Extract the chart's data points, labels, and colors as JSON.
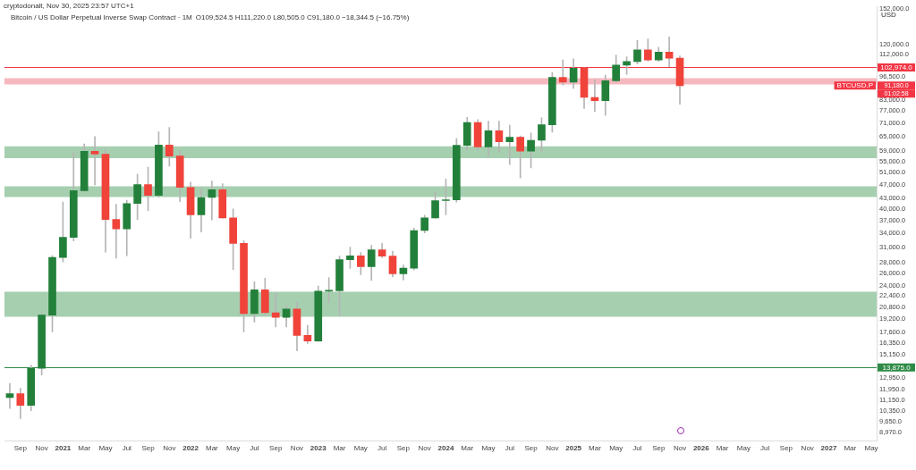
{
  "chart_data": {
    "type": "candlestick",
    "title": "Bitcoin / US Dollar Perpetual Inverse Swap Contract · 1M",
    "subtitle": "O109,524.5 H111,220.0 L80,505.0 C91,180.0 −18,344.5 (−16.75%)",
    "ylabel": "USD",
    "annotations": [
      "cryptodonalt, Nov 30, 2025 23:57 UTC+1",
      {
        "text": "BTCUSD.P",
        "y": 91180
      },
      "91,180.0",
      "01:02:58"
    ],
    "categories": [
      null,
      "Sep",
      null,
      "Nov",
      null,
      "2021",
      null,
      "Mar",
      null,
      "May",
      null,
      "Jul",
      null,
      "Sep",
      null,
      "Nov",
      null,
      "2022",
      null,
      "Mar",
      null,
      "May",
      null,
      "Jul",
      null,
      "Sep",
      null,
      "Nov",
      null,
      "2023",
      null,
      "Mar",
      null,
      "May",
      null,
      "Jul",
      null,
      "Sep",
      null,
      "Nov",
      null,
      "2024",
      null,
      "Mar",
      null,
      "May",
      null,
      "Jul",
      null,
      "Sep",
      null,
      "Nov",
      null,
      "2025",
      null,
      "Mar",
      null,
      "May",
      null,
      "Jul",
      null,
      "Sep",
      null,
      "Nov",
      null,
      "2026",
      null,
      "Mar",
      null,
      "May",
      null,
      "Jul",
      null,
      "Sep",
      null,
      "Nov",
      null,
      "2027",
      null,
      "Mar",
      null,
      "May"
    ],
    "ohlc": [
      [
        11350,
        12470,
        10550,
        11650
      ],
      [
        11650,
        12080,
        9870,
        10780
      ],
      [
        10780,
        14100,
        10400,
        13800
      ],
      [
        13800,
        19900,
        13200,
        19700
      ],
      [
        19700,
        29300,
        17600,
        28950
      ],
      [
        28950,
        41900,
        28100,
        33100
      ],
      [
        33100,
        58400,
        32300,
        45200
      ],
      [
        45200,
        61800,
        45000,
        58800
      ],
      [
        58800,
        64900,
        47000,
        57700
      ],
      [
        57700,
        59600,
        30000,
        37300
      ],
      [
        37300,
        41300,
        28800,
        35000
      ],
      [
        35000,
        42400,
        29300,
        41500
      ],
      [
        41500,
        50500,
        37300,
        47100
      ],
      [
        47100,
        52900,
        39600,
        43800
      ],
      [
        43800,
        67000,
        43300,
        61300
      ],
      [
        61300,
        69000,
        53300,
        57000
      ],
      [
        57000,
        59100,
        42000,
        46200
      ],
      [
        46200,
        47900,
        32900,
        38500
      ],
      [
        38500,
        45800,
        34300,
        43200
      ],
      [
        43200,
        48200,
        37200,
        45500
      ],
      [
        45500,
        47400,
        37600,
        37700
      ],
      [
        37700,
        40000,
        26700,
        31800
      ],
      [
        31800,
        32400,
        17600,
        19900
      ],
      [
        19900,
        24600,
        18800,
        23300
      ],
      [
        23300,
        25200,
        19600,
        20000
      ],
      [
        20000,
        22800,
        18200,
        19400
      ],
      [
        19400,
        21000,
        18200,
        20500
      ],
      [
        20500,
        21500,
        15500,
        17200
      ],
      [
        17200,
        18400,
        16300,
        16550
      ],
      [
        16550,
        23900,
        16500,
        23100
      ],
      [
        23100,
        25300,
        21400,
        23150
      ],
      [
        23150,
        29200,
        19600,
        28500
      ],
      [
        28500,
        31000,
        26900,
        29250
      ],
      [
        29250,
        29900,
        25800,
        27200
      ],
      [
        27200,
        31400,
        24800,
        30450
      ],
      [
        30450,
        31800,
        28900,
        29200
      ],
      [
        29200,
        30200,
        25400,
        25950
      ],
      [
        25950,
        27500,
        24900,
        26950
      ],
      [
        26950,
        35200,
        26600,
        34650
      ],
      [
        34650,
        38400,
        34100,
        37700
      ],
      [
        37700,
        44700,
        37600,
        42300
      ],
      [
        42300,
        48900,
        38500,
        42550
      ],
      [
        42550,
        64000,
        41900,
        61200
      ],
      [
        61200,
        73800,
        59300,
        71300
      ],
      [
        71300,
        72700,
        59300,
        60600
      ],
      [
        60600,
        71900,
        56600,
        67500
      ],
      [
        67500,
        71900,
        58500,
        62700
      ],
      [
        62700,
        70000,
        53800,
        64600
      ],
      [
        64600,
        65200,
        49200,
        58900
      ],
      [
        58900,
        66500,
        52600,
        63300
      ],
      [
        63300,
        73600,
        58900,
        70200
      ],
      [
        70200,
        99600,
        66800,
        96400
      ],
      [
        96400,
        108300,
        91500,
        93400
      ],
      [
        93400,
        109000,
        89500,
        102400
      ],
      [
        102400,
        102800,
        78300,
        84300
      ],
      [
        84300,
        95000,
        76700,
        82500
      ],
      [
        82500,
        97800,
        74700,
        94200
      ],
      [
        94200,
        111900,
        93400,
        104600
      ],
      [
        104600,
        110500,
        98300,
        107100
      ],
      [
        107100,
        123200,
        105300,
        115700
      ],
      [
        115700,
        124500,
        107400,
        108200
      ],
      [
        108200,
        117900,
        107300,
        114000
      ],
      [
        114000,
        126200,
        103500,
        109500
      ],
      [
        109524.5,
        111220,
        80505,
        91180
      ],
      null,
      null,
      null,
      null,
      null,
      null,
      null,
      null,
      null,
      null,
      null,
      null,
      null,
      null,
      null,
      null,
      null,
      null
    ],
    "colors": [
      "#22803a",
      "#f0433a",
      "#22803a",
      "#22803a",
      "#22803a",
      "#22803a",
      "#22803a",
      "#22803a",
      "#f0433a",
      "#f0433a",
      "#f0433a",
      "#22803a",
      "#22803a",
      "#f0433a",
      "#22803a",
      "#f0433a",
      "#f0433a",
      "#f0433a",
      "#22803a",
      "#22803a",
      "#f0433a",
      "#f0433a",
      "#f0433a",
      "#22803a",
      "#f0433a",
      "#f0433a",
      "#22803a",
      "#f0433a",
      "#f0433a",
      "#22803a",
      "#22803a",
      "#22803a",
      "#22803a",
      "#f0433a",
      "#22803a",
      "#f0433a",
      "#f0433a",
      "#22803a",
      "#22803a",
      "#22803a",
      "#22803a",
      "#22803a",
      "#22803a",
      "#22803a",
      "#f0433a",
      "#22803a",
      "#f0433a",
      "#22803a",
      "#f0433a",
      "#22803a",
      "#22803a",
      "#22803a",
      "#f0433a",
      "#22803a",
      "#f0433a",
      "#f0433a",
      "#22803a",
      "#22803a",
      "#22803a",
      "#22803a",
      "#f0433a",
      "#22803a",
      "#f0433a",
      "#f0433a",
      null,
      null,
      null,
      null,
      null,
      null,
      null,
      null,
      null,
      null,
      null,
      null,
      null,
      null,
      null,
      null,
      null,
      null
    ],
    "log": true,
    "ylim": [
      8500,
      154500
    ],
    "yticks": [
      {
        "value": 152000,
        "label": "152,000.0"
      },
      {
        "value": 120000,
        "label": "120,000.0"
      },
      {
        "value": 112000,
        "label": "112,000.0"
      },
      {
        "value": 96500,
        "label": "96,500.0"
      },
      {
        "value": 83000,
        "label": "83,000.0"
      },
      {
        "value": 77000,
        "label": "77,000.0"
      },
      {
        "value": 71000,
        "label": "71,000.0"
      },
      {
        "value": 65000,
        "label": "65,000.0"
      },
      {
        "value": 59000,
        "label": "59,000.0"
      },
      {
        "value": 55000,
        "label": "55,000.0"
      },
      {
        "value": 51000,
        "label": "51,000.0"
      },
      {
        "value": 47000,
        "label": "47,000.0"
      },
      {
        "value": 43000,
        "label": "43,000.0"
      },
      {
        "value": 40000,
        "label": "40,000.0"
      },
      {
        "value": 37000,
        "label": "37,000.0"
      },
      {
        "value": 34000,
        "label": "34,000.0"
      },
      {
        "value": 31000,
        "label": "31,000.0"
      },
      {
        "value": 28000,
        "label": "28,000.0"
      },
      {
        "value": 26000,
        "label": "26,000.0"
      },
      {
        "value": 24000,
        "label": "24,000.0"
      },
      {
        "value": 22400,
        "label": "22,400.0"
      },
      {
        "value": 20800,
        "label": "20,800.0"
      },
      {
        "value": 19200,
        "label": "19,200.0"
      },
      {
        "value": 17600,
        "label": "17,600.0"
      },
      {
        "value": 16350,
        "label": "16,350.0"
      },
      {
        "value": 15150,
        "label": "15,150.0"
      },
      {
        "value": 12950,
        "label": "12,950.0"
      },
      {
        "value": 11950,
        "label": "11,950.0"
      },
      {
        "value": 11150,
        "label": "11,150.0"
      },
      {
        "value": 10350,
        "label": "10,350.0"
      },
      {
        "value": 9650,
        "label": "9,650.0"
      },
      {
        "value": 8970,
        "label": "8,970.0"
      }
    ],
    "ref_lines": [
      {
        "axis": "y",
        "value": 102974,
        "label": "102,974.0",
        "color": "#f23645"
      },
      {
        "axis": "y",
        "value": 13875,
        "label": "13,875.0",
        "color": "#2e8b47"
      }
    ],
    "bands": [
      {
        "axis": "y",
        "from": 56200,
        "to": 60800,
        "color": "#a6cfb0"
      },
      {
        "axis": "y",
        "from": 43350,
        "to": 46570,
        "color": "#a6cfb0"
      },
      {
        "axis": "y",
        "from": 19480,
        "to": 23030,
        "color": "#a6cfb0"
      },
      {
        "axis": "y",
        "from": 91950,
        "to": 95900,
        "color": "#f6b8bf"
      }
    ],
    "grid": false,
    "legend": false
  }
}
